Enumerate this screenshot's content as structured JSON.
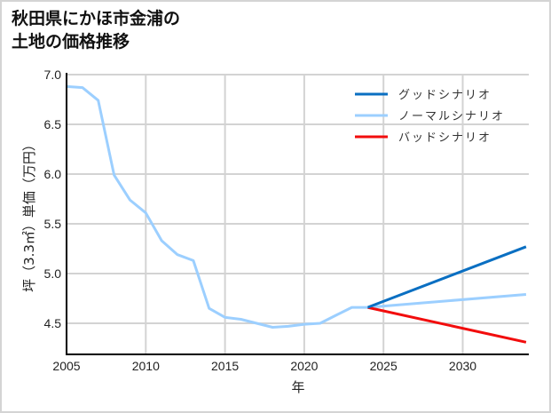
{
  "title": {
    "line1": "秋田県にかほ市金浦の",
    "line2": "土地の価格推移"
  },
  "chart_data": {
    "type": "line",
    "title": "秋田県にかほ市金浦の土地の価格推移",
    "xlabel": "年",
    "ylabel": "坪（3.3㎡）単価（万円）",
    "xlim": [
      2005,
      2034.2
    ],
    "ylim": [
      4.18,
      7.0
    ],
    "xticks": [
      2005,
      2010,
      2015,
      2020,
      2025,
      2030
    ],
    "yticks": [
      4.5,
      5.0,
      5.5,
      6.0,
      6.5,
      7.0
    ],
    "ytick_labels": [
      "4.5",
      "5.0",
      "5.5",
      "6.0",
      "6.5",
      "7.0"
    ],
    "grid": true,
    "legend_position": "upper right",
    "historical": {
      "name": "ノーマルシナリオ",
      "x": [
        2005,
        2006,
        2007,
        2008,
        2009,
        2010,
        2011,
        2012,
        2013,
        2014,
        2015,
        2016,
        2017,
        2018,
        2019,
        2020,
        2021,
        2022,
        2023,
        2024
      ],
      "y": [
        6.88,
        6.87,
        6.74,
        5.99,
        5.74,
        5.61,
        5.33,
        5.19,
        5.13,
        4.65,
        4.56,
        4.54,
        4.5,
        4.46,
        4.47,
        4.49,
        4.5,
        4.58,
        4.66,
        4.66
      ]
    },
    "series": [
      {
        "name": "グッドシナリオ",
        "color": "#0a6fc2",
        "x": [
          2024,
          2034
        ],
        "y": [
          4.66,
          5.27
        ]
      },
      {
        "name": "ノーマルシナリオ",
        "color": "#9ccfff",
        "x": [
          2024,
          2034
        ],
        "y": [
          4.66,
          4.79
        ]
      },
      {
        "name": "バッドシナリオ",
        "color": "#f20d0d",
        "x": [
          2024,
          2034
        ],
        "y": [
          4.66,
          4.31
        ]
      }
    ]
  },
  "axes": {
    "xlabel": "年",
    "ylabel": "坪（3.3㎡）単価（万円）"
  },
  "legend": {
    "items": [
      {
        "label": "グッドシナリオ",
        "color": "#0a6fc2"
      },
      {
        "label": "ノーマルシナリオ",
        "color": "#9ccfff"
      },
      {
        "label": "バッドシナリオ",
        "color": "#f20d0d"
      }
    ]
  }
}
